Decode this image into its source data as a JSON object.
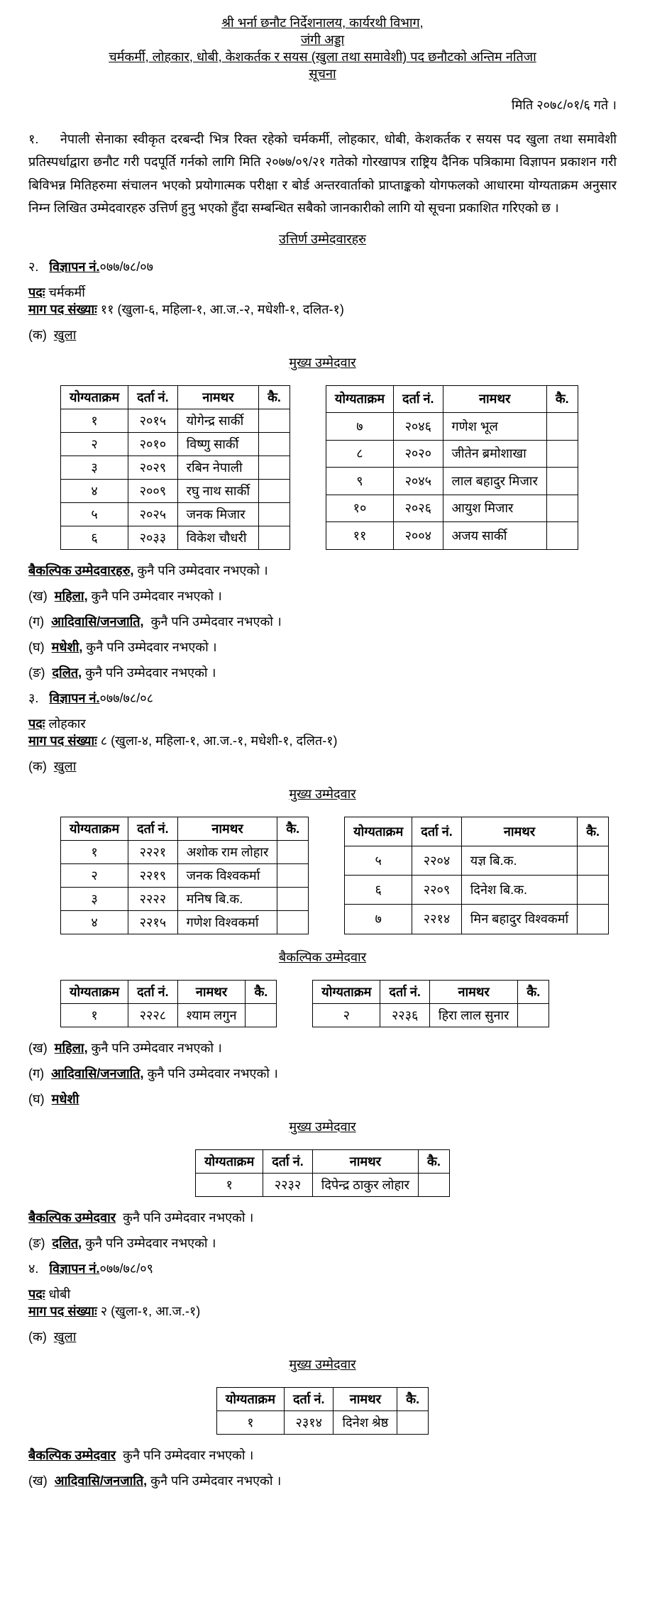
{
  "header": {
    "line1": "श्री भर्ना छनौट निर्देशनालय, कार्यरथी विभाग,",
    "line2": "जंगी अड्डा",
    "line3": "चर्मकर्मी, लोहकार, धोबी, केशकर्तक र सयस (खुला तथा समावेशी) पद छनौटको अन्तिम नतिजा",
    "line4": "सूचना"
  },
  "date": "मिति २०७८/०१/६ गते ।",
  "intro_num": "१.",
  "intro": "नेपाली सेनाका स्वीकृत दरबन्दी भित्र रिक्त रहेको चर्मकर्मी, लोहकार, धोबी, केशकर्तक र सयस पद खुला तथा समावेशी प्रतिस्पर्धाद्वारा छनौट गरी पदपूर्ति गर्नको लागि मिति २०७७/०९/२१ गतेको गोरखापत्र राष्ट्रिय दैनिक पत्रिकामा विज्ञापन प्रकाशन गरी बिविभन्न मितिहरुमा संचालन भएको प्रयोगात्मक परीक्षा र बोर्ड अन्तरवार्ताको प्राप्ताङ्कको योगफलको आधारमा योग्यताक्रम अनुसार निम्न लिखित उम्मेदवारहरु उत्तिर्ण हुनु भएको हुँदा सम्बन्धित सबैको जानकारीको लागि यो सूचना प्रकाशित गरिएको छ ।",
  "passed_heading": "उत्तिर्ण उम्मेदवारहरु",
  "headers": {
    "rank": "योग्यताक्रम",
    "regno": "दर्ता नं.",
    "name": "नामथर",
    "remarks": "कै."
  },
  "section2": {
    "num": "२.",
    "adv_label": "विज्ञापन नं.",
    "adv": "०७७/७८/०७",
    "post_label": "पदः",
    "post": "चर्मकर्मी",
    "count_label": "माग पद संख्याः",
    "count": "११ (खुला-६, महिला-१, आ.ज.-२, मधेशी-१, दलित-१)",
    "ka": "(क)",
    "khula": "खुला",
    "main_heading": "मुख्य उम्मेदवार",
    "table_left": [
      {
        "rank": "१",
        "reg": "२०१५",
        "name": "योगेन्द्र सार्की",
        "k": ""
      },
      {
        "rank": "२",
        "reg": "२०१०",
        "name": "विष्णु सार्की",
        "k": ""
      },
      {
        "rank": "३",
        "reg": "२०२९",
        "name": "रबिन नेपाली",
        "k": ""
      },
      {
        "rank": "४",
        "reg": "२००९",
        "name": "रघु नाथ सार्की",
        "k": ""
      },
      {
        "rank": "५",
        "reg": "२०२५",
        "name": "जनक मिजार",
        "k": ""
      },
      {
        "rank": "६",
        "reg": "२०३३",
        "name": "विकेश चौधरी",
        "k": ""
      }
    ],
    "table_right": [
      {
        "rank": "७",
        "reg": "२०४६",
        "name": "गणेश भूल",
        "k": ""
      },
      {
        "rank": "८",
        "reg": "२०२०",
        "name": "जीतेन ब्रमोशाखा",
        "k": ""
      },
      {
        "rank": "९",
        "reg": "२०४५",
        "name": "लाल बहादुर मिजार",
        "k": ""
      },
      {
        "rank": "१०",
        "reg": "२०२६",
        "name": "आयुश मिजार",
        "k": ""
      },
      {
        "rank": "११",
        "reg": "२००४",
        "name": "अजय सार्की",
        "k": ""
      }
    ],
    "alt_label": "बैकल्पिक उम्मेदवारहरु,",
    "none": "कुनै पनि उम्मेदवार नभएको ।",
    "kha": "(ख)",
    "mahila": "महिला,",
    "ga": "(ग)",
    "adiwasi": "आदिवासि/जनजाति,",
    "gha": "(घ)",
    "madhesi": "मधेशी,",
    "nga": "(ङ)",
    "dalit": "दलित,"
  },
  "section3": {
    "num": "३.",
    "adv_label": "विज्ञापन नं.",
    "adv": "०७७/७८/०८",
    "post_label": "पदः",
    "post": "लोहकार",
    "count_label": "माग पद संख्याः",
    "count": "८ (खुला-४, महिला-१, आ.ज.-१, मधेशी-१, दलित-१)",
    "ka": "(क)",
    "khula": "खुला",
    "main_heading": "मुख्य उम्मेदवार",
    "table_left": [
      {
        "rank": "१",
        "reg": "२२२१",
        "name": "अशोक राम लोहार",
        "k": ""
      },
      {
        "rank": "२",
        "reg": "२२१९",
        "name": "जनक विश्वकर्मा",
        "k": ""
      },
      {
        "rank": "३",
        "reg": "२२२२",
        "name": "मनिष बि.क.",
        "k": ""
      },
      {
        "rank": "४",
        "reg": "२२१५",
        "name": "गणेश विश्वकर्मा",
        "k": ""
      }
    ],
    "table_right": [
      {
        "rank": "५",
        "reg": "२२०४",
        "name": "यज्ञ बि.क.",
        "k": ""
      },
      {
        "rank": "६",
        "reg": "२२०९",
        "name": "दिनेश बि.क.",
        "k": ""
      },
      {
        "rank": "७",
        "reg": "२२१४",
        "name": "मिन बहादुर विश्वकर्मा",
        "k": ""
      }
    ],
    "alt_heading": "बैकल्पिक उम्मेदवार",
    "alt_left": [
      {
        "rank": "१",
        "reg": "२२२८",
        "name": "श्याम लगुन",
        "k": ""
      }
    ],
    "alt_right": [
      {
        "rank": "२",
        "reg": "२२३६",
        "name": "हिरा लाल सुनार",
        "k": ""
      }
    ],
    "kha": "(ख)",
    "mahila": "महिला,",
    "none": "कुनै पनि उम्मेदवार नभएको ।",
    "ga": "(ग)",
    "adiwasi": "आदिवासि/जनजाति,",
    "gha": "(घ)",
    "madhesi": "मधेशी",
    "madhesi_table": [
      {
        "rank": "१",
        "reg": "२२३२",
        "name": "दिपेन्द्र ठाकुर लोहार",
        "k": ""
      }
    ],
    "alt_label": "बैकल्पिक उम्मेदवार",
    "nga": "(ङ)",
    "dalit": "दलित,"
  },
  "section4": {
    "num": "४.",
    "adv_label": "विज्ञापन नं.",
    "adv": "०७७/७८/०९",
    "post_label": "पदः",
    "post": "धोबी",
    "count_label": "माग पद संख्याः",
    "count": "२ (खुला-१, आ.ज.-१)",
    "ka": "(क)",
    "khula": "खुला",
    "main_heading": "मुख्य उम्मेदवार",
    "table": [
      {
        "rank": "१",
        "reg": "२३१४",
        "name": "दिनेश श्रेष्ठ",
        "k": ""
      }
    ],
    "alt_label": "बैकल्पिक उम्मेदवार",
    "none": "कुनै पनि उम्मेदवार नभएको ।",
    "kha": "(ख)",
    "adiwasi": "आदिवासि/जनजाति,"
  }
}
